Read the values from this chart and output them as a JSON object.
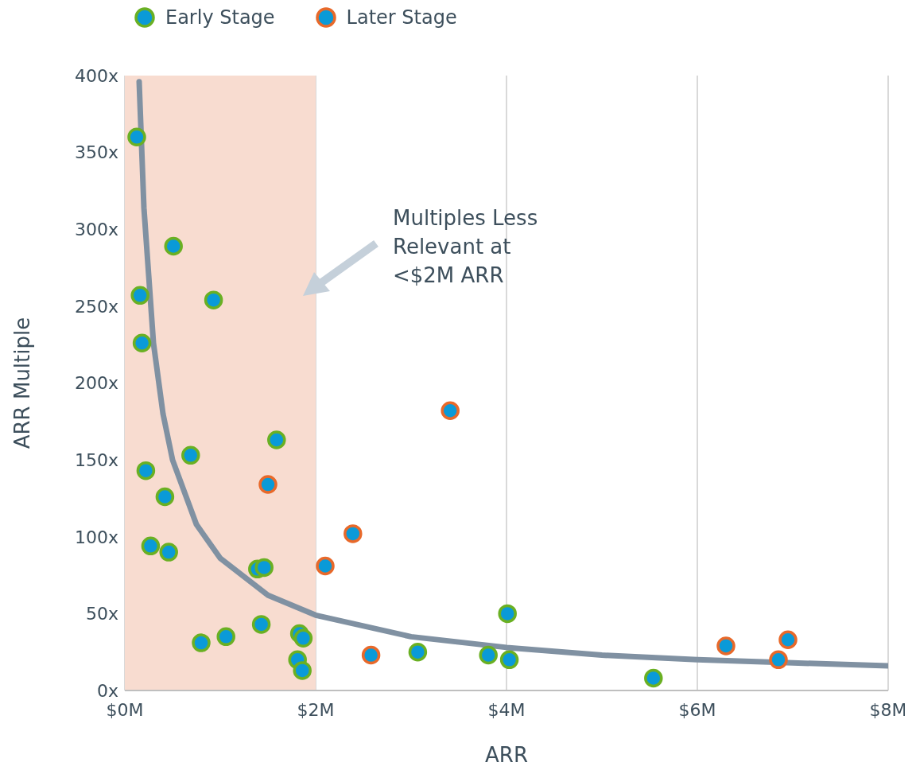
{
  "chart_data": {
    "type": "scatter",
    "xlabel": "ARR",
    "ylabel": "ARR Multiple",
    "annotations": [
      "Multiples Less Relevant at <$2M ARR"
    ],
    "xlim": [
      0,
      8
    ],
    "xticks": [
      {
        "value": 0,
        "label": "$0M"
      },
      {
        "value": 2,
        "label": "$2M"
      },
      {
        "value": 4,
        "label": "$4M"
      },
      {
        "value": 6,
        "label": "$6M"
      },
      {
        "value": 8,
        "label": "$8M"
      }
    ],
    "ylim": [
      0,
      400
    ],
    "yticks": [
      {
        "value": 0,
        "label": "0x"
      },
      {
        "value": 50,
        "label": "50x"
      },
      {
        "value": 100,
        "label": "100x"
      },
      {
        "value": 150,
        "label": "150x"
      },
      {
        "value": 200,
        "label": "200x"
      },
      {
        "value": 250,
        "label": "250x"
      },
      {
        "value": 300,
        "label": "300x"
      },
      {
        "value": 350,
        "label": "350x"
      },
      {
        "value": 400,
        "label": "400x"
      }
    ],
    "grid": "x",
    "legend": "top left",
    "marker": "circle",
    "bands": [
      {
        "axis": "x",
        "from": 0,
        "to": 2,
        "color": "#f8dcd0"
      }
    ],
    "series": [
      {
        "type": "line",
        "marker": "none",
        "color": "#8091a2",
        "x": [
          0.15,
          0.2,
          0.3,
          0.4,
          0.5,
          0.75,
          1,
          1.5,
          2,
          3,
          4,
          5,
          6,
          7,
          8
        ],
        "values": [
          396,
          314,
          226,
          180,
          150,
          108,
          86,
          62,
          49,
          35,
          28,
          23,
          20,
          18,
          16
        ]
      },
      {
        "name": "Early Stage",
        "color": "#6ab023",
        "x": [
          0.125,
          0.51,
          0.16,
          0.93,
          0.18,
          1.59,
          0.69,
          0.22,
          0.42,
          0.27,
          0.46,
          1.39,
          1.46,
          4.01,
          0.8,
          1.06,
          1.43,
          1.83,
          1.87,
          1.81,
          1.86,
          3.07,
          3.81,
          4.03,
          5.54
        ],
        "values": [
          360,
          289,
          257,
          254,
          226,
          163,
          153,
          143,
          126,
          94,
          90,
          79,
          80,
          50,
          31,
          35,
          43,
          37,
          34,
          20,
          13,
          25,
          23,
          20,
          8
        ]
      },
      {
        "name": "Later Stage",
        "color": "#e8692a",
        "x": [
          3.41,
          1.5,
          2.39,
          2.1,
          2.58,
          6.3,
          6.95,
          6.85
        ],
        "values": [
          182,
          134,
          102,
          81,
          23,
          29,
          33,
          20
        ]
      }
    ]
  }
}
